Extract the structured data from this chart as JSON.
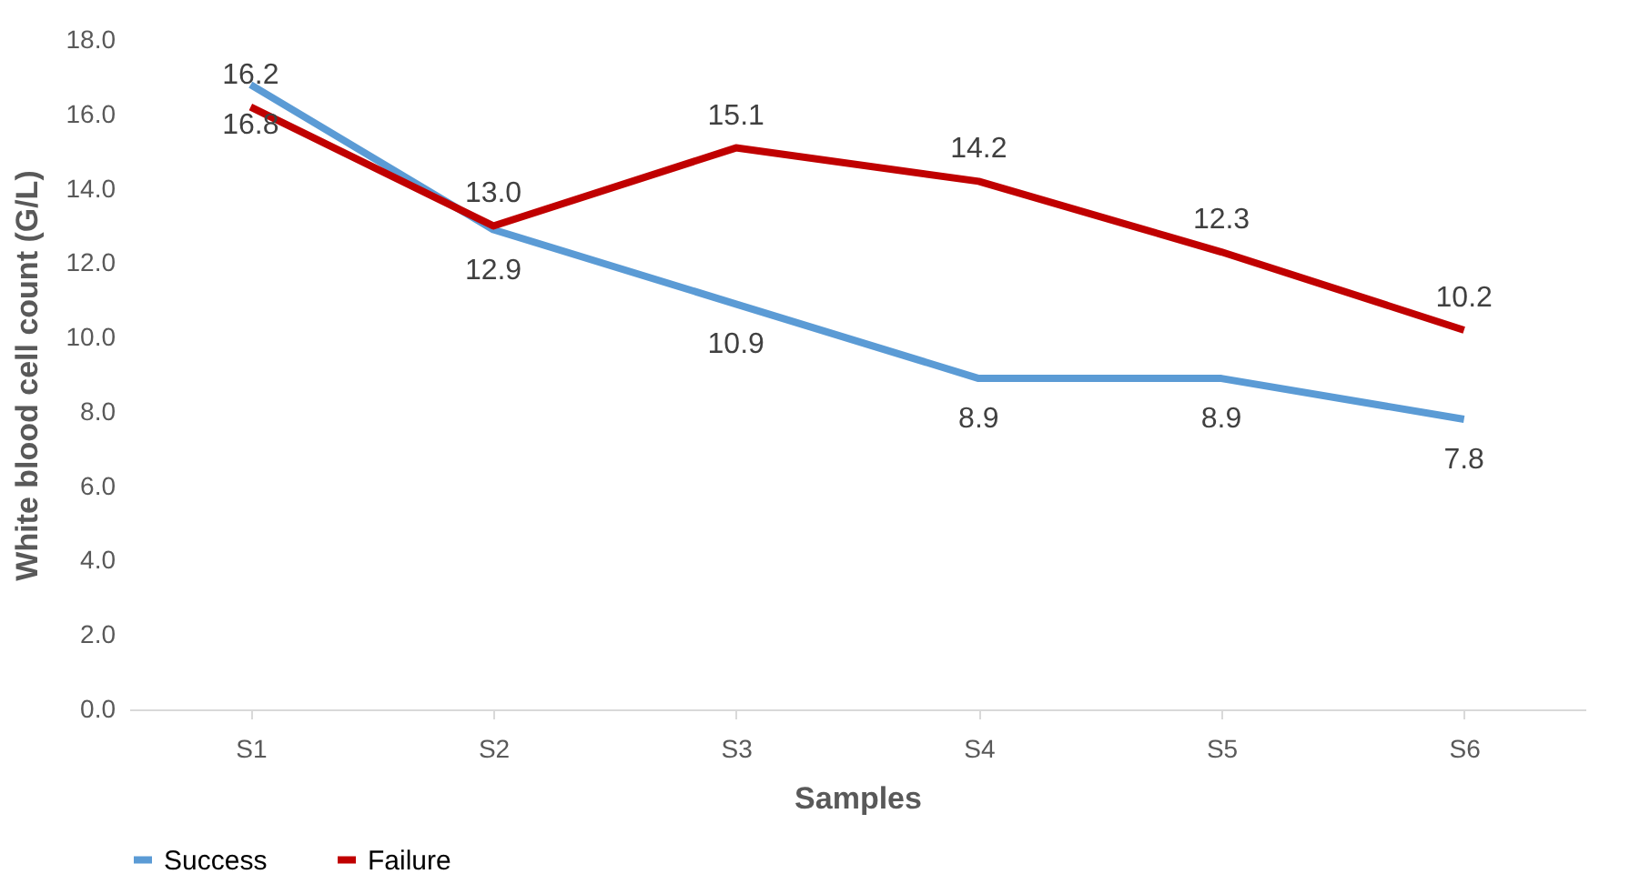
{
  "chart_data": {
    "type": "line",
    "xlabel": "Samples",
    "ylabel": "White blood cell count (G/L)",
    "categories": [
      "S1",
      "S2",
      "S3",
      "S4",
      "S5",
      "S6"
    ],
    "series": [
      {
        "name": "Success",
        "color": "#5b9bd5",
        "values": [
          16.8,
          12.9,
          10.9,
          8.9,
          8.9,
          7.8
        ],
        "value_labels": [
          "16.8",
          "12.9",
          "10.9",
          "8.9",
          "8.9",
          "7.8"
        ]
      },
      {
        "name": "Failure",
        "color": "#c00000",
        "values": [
          16.2,
          13.0,
          15.1,
          14.2,
          12.3,
          10.2
        ],
        "value_labels": [
          "16.2",
          "13.0",
          "15.1",
          "14.2",
          "12.3",
          "10.2"
        ]
      }
    ],
    "ylim": [
      0,
      18
    ],
    "yticks": [
      {
        "value": 0,
        "label": "0.0"
      },
      {
        "value": 2,
        "label": "2.0"
      },
      {
        "value": 4,
        "label": "4.0"
      },
      {
        "value": 6,
        "label": "6.0"
      },
      {
        "value": 8,
        "label": "8.0"
      },
      {
        "value": 10,
        "label": "10.0"
      },
      {
        "value": 12,
        "label": "12.0"
      },
      {
        "value": 14,
        "label": "14.0"
      },
      {
        "value": 16,
        "label": "16.0"
      },
      {
        "value": 18,
        "label": "18.0"
      }
    ],
    "grid": false,
    "legend": "bottom",
    "marker": "none",
    "line_style": "solid"
  }
}
